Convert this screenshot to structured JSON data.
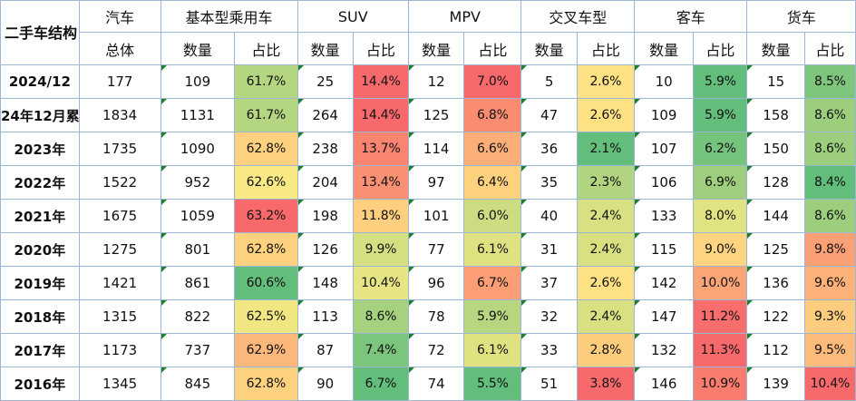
{
  "table": {
    "corner": "二手车结构",
    "groups": [
      "汽车",
      "基本型乘用车",
      "SUV",
      "MPV",
      "交叉车型",
      "客车",
      "货车"
    ],
    "sub_total": "总体",
    "sub_count": "数量",
    "sub_share": "占比",
    "rows": [
      {
        "label": "2024/12",
        "total": "177",
        "cells": [
          [
            "109",
            "61.7%"
          ],
          [
            "25",
            "14.4%"
          ],
          [
            "12",
            "7.0%"
          ],
          [
            "5",
            "2.6%"
          ],
          [
            "10",
            "5.9%"
          ],
          [
            "15",
            "8.5%"
          ]
        ]
      },
      {
        "label": "24年12月累",
        "total": "1834",
        "cells": [
          [
            "1131",
            "61.7%"
          ],
          [
            "264",
            "14.4%"
          ],
          [
            "125",
            "6.8%"
          ],
          [
            "47",
            "2.6%"
          ],
          [
            "109",
            "5.9%"
          ],
          [
            "158",
            "8.6%"
          ]
        ]
      },
      {
        "label": "2023年",
        "total": "1735",
        "cells": [
          [
            "1090",
            "62.8%"
          ],
          [
            "238",
            "13.7%"
          ],
          [
            "114",
            "6.6%"
          ],
          [
            "36",
            "2.1%"
          ],
          [
            "107",
            "6.2%"
          ],
          [
            "150",
            "8.6%"
          ]
        ]
      },
      {
        "label": "2022年",
        "total": "1522",
        "cells": [
          [
            "952",
            "62.6%"
          ],
          [
            "204",
            "13.4%"
          ],
          [
            "97",
            "6.4%"
          ],
          [
            "35",
            "2.3%"
          ],
          [
            "106",
            "6.9%"
          ],
          [
            "128",
            "8.4%"
          ]
        ]
      },
      {
        "label": "2021年",
        "total": "1675",
        "cells": [
          [
            "1059",
            "63.2%"
          ],
          [
            "198",
            "11.8%"
          ],
          [
            "101",
            "6.0%"
          ],
          [
            "40",
            "2.4%"
          ],
          [
            "133",
            "8.0%"
          ],
          [
            "144",
            "8.6%"
          ]
        ]
      },
      {
        "label": "2020年",
        "total": "1275",
        "cells": [
          [
            "801",
            "62.8%"
          ],
          [
            "126",
            "9.9%"
          ],
          [
            "77",
            "6.1%"
          ],
          [
            "31",
            "2.4%"
          ],
          [
            "115",
            "9.0%"
          ],
          [
            "125",
            "9.8%"
          ]
        ]
      },
      {
        "label": "2019年",
        "total": "1421",
        "cells": [
          [
            "861",
            "60.6%"
          ],
          [
            "148",
            "10.4%"
          ],
          [
            "96",
            "6.7%"
          ],
          [
            "37",
            "2.6%"
          ],
          [
            "142",
            "10.0%"
          ],
          [
            "136",
            "9.6%"
          ]
        ]
      },
      {
        "label": "2018年",
        "total": "1315",
        "cells": [
          [
            "822",
            "62.5%"
          ],
          [
            "113",
            "8.6%"
          ],
          [
            "78",
            "5.9%"
          ],
          [
            "32",
            "2.4%"
          ],
          [
            "147",
            "11.2%"
          ],
          [
            "122",
            "9.3%"
          ]
        ]
      },
      {
        "label": "2017年",
        "total": "1173",
        "cells": [
          [
            "737",
            "62.9%"
          ],
          [
            "87",
            "7.4%"
          ],
          [
            "72",
            "6.1%"
          ],
          [
            "33",
            "2.8%"
          ],
          [
            "132",
            "11.3%"
          ],
          [
            "112",
            "9.5%"
          ]
        ]
      },
      {
        "label": "2016年",
        "total": "1345",
        "cells": [
          [
            "845",
            "62.8%"
          ],
          [
            "90",
            "6.7%"
          ],
          [
            "74",
            "5.5%"
          ],
          [
            "51",
            "3.8%"
          ],
          [
            "146",
            "10.9%"
          ],
          [
            "139",
            "10.4%"
          ]
        ]
      }
    ]
  },
  "chart_data": {
    "type": "table",
    "title": "",
    "columns": [
      "二手车结构",
      "汽车 总体",
      "基本型乘用车 数量",
      "基本型乘用车 占比",
      "SUV 数量",
      "SUV 占比",
      "MPV 数量",
      "MPV 占比",
      "交叉车型 数量",
      "交叉车型 占比",
      "客车 数量",
      "客车 占比",
      "货车 数量",
      "货车 占比"
    ],
    "rows": [
      [
        "2024/12",
        177,
        109,
        "61.7%",
        25,
        "14.4%",
        12,
        "7.0%",
        5,
        "2.6%",
        10,
        "5.9%",
        15,
        "8.5%"
      ],
      [
        "24年12月累",
        1834,
        1131,
        "61.7%",
        264,
        "14.4%",
        125,
        "6.8%",
        47,
        "2.6%",
        109,
        "5.9%",
        158,
        "8.6%"
      ],
      [
        "2023年",
        1735,
        1090,
        "62.8%",
        238,
        "13.7%",
        114,
        "6.6%",
        36,
        "2.1%",
        107,
        "6.2%",
        150,
        "8.6%"
      ],
      [
        "2022年",
        1522,
        952,
        "62.6%",
        204,
        "13.4%",
        97,
        "6.4%",
        35,
        "2.3%",
        106,
        "6.9%",
        128,
        "8.4%"
      ],
      [
        "2021年",
        1675,
        1059,
        "63.2%",
        198,
        "11.8%",
        101,
        "6.0%",
        40,
        "2.4%",
        133,
        "8.0%",
        144,
        "8.6%"
      ],
      [
        "2020年",
        1275,
        801,
        "62.8%",
        126,
        "9.9%",
        77,
        "6.1%",
        31,
        "2.4%",
        115,
        "9.0%",
        125,
        "9.8%"
      ],
      [
        "2019年",
        1421,
        861,
        "60.6%",
        148,
        "10.4%",
        96,
        "6.7%",
        37,
        "2.6%",
        142,
        "10.0%",
        136,
        "9.6%"
      ],
      [
        "2018年",
        1315,
        822,
        "62.5%",
        113,
        "8.6%",
        78,
        "5.9%",
        32,
        "2.4%",
        147,
        "11.2%",
        122,
        "9.3%"
      ],
      [
        "2017年",
        1173,
        737,
        "62.9%",
        87,
        "7.4%",
        72,
        "6.1%",
        33,
        "2.8%",
        132,
        "11.3%",
        112,
        "9.5%"
      ],
      [
        "2016年",
        1345,
        845,
        "62.8%",
        90,
        "6.7%",
        74,
        "5.5%",
        51,
        "3.8%",
        146,
        "10.9%",
        139,
        "10.4%"
      ]
    ],
    "color_scale": {
      "low": "#63be7b",
      "mid": "#ffeb84",
      "high": "#f8696b"
    }
  }
}
